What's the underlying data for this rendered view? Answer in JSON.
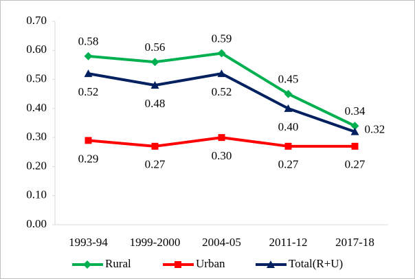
{
  "chart_data": {
    "type": "line",
    "categories": [
      "1993-94",
      "1999-2000",
      "2004-05",
      "2011-12",
      "2017-18"
    ],
    "series": [
      {
        "name": "Rural",
        "color": "#00b050",
        "marker": "diamond",
        "values": [
          0.58,
          0.56,
          0.59,
          0.45,
          0.34
        ],
        "value_labels": [
          "0.58",
          "0.56",
          "0.59",
          "0.45",
          "0.34"
        ]
      },
      {
        "name": "Urban",
        "color": "#ff0000",
        "marker": "square",
        "values": [
          0.29,
          0.27,
          0.3,
          0.27,
          0.27
        ],
        "value_labels": [
          "0.29",
          "0.27",
          "0.30",
          "0.27",
          "0.27"
        ]
      },
      {
        "name": "Total(R+U)",
        "color": "#002060",
        "marker": "triangle",
        "values": [
          0.52,
          0.48,
          0.52,
          0.4,
          0.32
        ],
        "value_labels": [
          "0.52",
          "0.48",
          "0.52",
          "0.40",
          "0.32"
        ]
      }
    ],
    "ylim": [
      0,
      0.7
    ],
    "yticks": [
      {
        "value": 0,
        "label": "0.00"
      },
      {
        "value": 0.1,
        "label": "0.10"
      },
      {
        "value": 0.2,
        "label": "0.20"
      },
      {
        "value": 0.3,
        "label": "0.30"
      },
      {
        "value": 0.4,
        "label": "0.40"
      },
      {
        "value": 0.5,
        "label": "0.50"
      },
      {
        "value": 0.6,
        "label": "0.60"
      },
      {
        "value": 0.7,
        "label": "0.70"
      }
    ],
    "grid": false,
    "legend": "bottom"
  }
}
